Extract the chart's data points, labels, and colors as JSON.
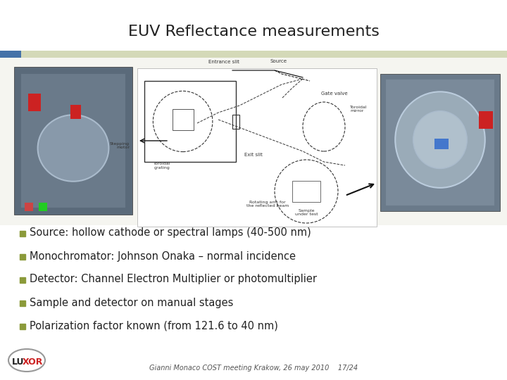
{
  "title": "EUV Reflectance measurements",
  "title_fontsize": 16,
  "title_color": "#222222",
  "background_color": "#ffffff",
  "header_bar_color1": "#4472a8",
  "header_bar_color2": "#d4d9b8",
  "bullet_points": [
    "Source: hollow cathode or spectral lamps (40-500 nm)",
    "Monochromator: Johnson Onaka – normal incidence",
    "Detector: Channel Electron Multiplier or photomultiplier",
    "Sample and detector on manual stages",
    "Polarization factor known (from 121.6 to 40 nm)"
  ],
  "bullet_color": "#8b9a3a",
  "bullet_fontsize": 10.5,
  "footer_text": "Gianni Monaco COST meeting Krakow, 26 may 2010    17/24",
  "footer_fontsize": 7,
  "footer_color": "#555555",
  "left_photo_color": "#7a8a9a",
  "right_photo_color": "#8a9aaa",
  "diagram_bg": "#f0f0f0"
}
